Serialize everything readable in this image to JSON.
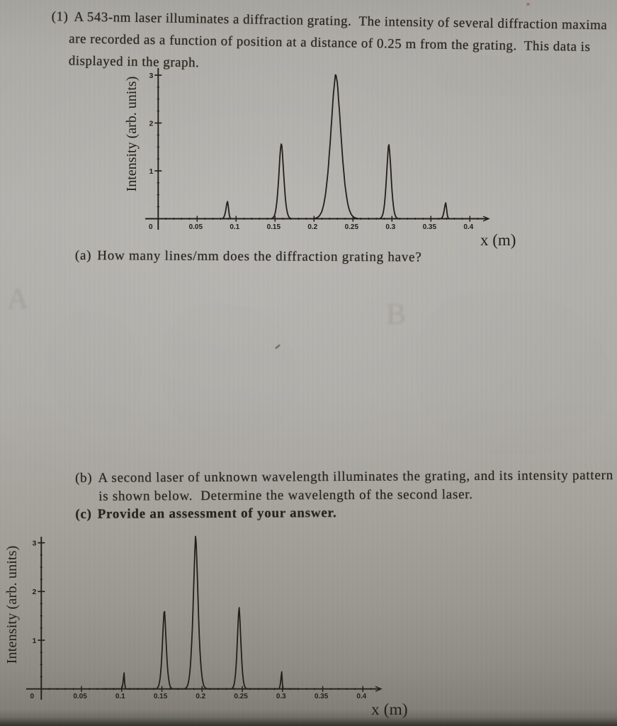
{
  "problem": {
    "number_label": "(1)",
    "intro_line1": "A 543-nm laser illuminates a diffraction grating.  The intensity of several diffraction maxima",
    "intro_line2": "are recorded as a function of position at a distance of 0.25 m from the grating.  This data is",
    "intro_line3": "displayed in the graph.",
    "part_a_label": "(a)",
    "part_a_text": "How many lines/mm does the diffraction grating have?",
    "part_b_label": "(b)",
    "part_b_line1": "A second laser of unknown wavelength illuminates the grating, and its intensity pattern",
    "part_b_line2": "is shown below.  Determine the wavelength of the second laser.",
    "part_c_label": "(c)",
    "part_c_text": "Provide an assessment of your answer."
  },
  "ghost_marks": {
    "letter_a": "A",
    "letter_b": "B"
  },
  "chart_data": [
    {
      "type": "line",
      "title": "",
      "xlabel": "x (m)",
      "ylabel": "Intensity (arb. units)",
      "xlim": [
        0,
        0.42
      ],
      "ylim": [
        0,
        3.2
      ],
      "xticks": [
        0,
        0.05,
        0.1,
        0.15,
        0.2,
        0.25,
        0.3,
        0.35,
        0.4
      ],
      "xtick_labels": [
        "0",
        "0.05",
        "0.1",
        "0.15",
        "0.2",
        "0.25",
        "0.3",
        "0.35",
        "0.4"
      ],
      "yticks": [
        1,
        2,
        3
      ],
      "x_minor_step": 0.01,
      "y_minor_step": 0.25,
      "grid": false,
      "peaks": [
        {
          "x": 0.089,
          "height": 0.36,
          "width": 0.0026,
          "skew": 0.3
        },
        {
          "x": 0.158,
          "height": 1.58,
          "width": 0.0045,
          "skew": 0
        },
        {
          "x": 0.228,
          "height": 3.01,
          "width": 0.0095,
          "skew": 0
        },
        {
          "x": 0.296,
          "height": 1.55,
          "width": 0.0042,
          "skew": 0
        },
        {
          "x": 0.369,
          "height": 0.33,
          "width": 0.0024,
          "skew": 0.3
        }
      ]
    },
    {
      "type": "line",
      "title": "",
      "xlabel": "x (m)",
      "ylabel": "Intensity (arb. units)",
      "xlim": [
        0,
        0.42
      ],
      "ylim": [
        0,
        3.2
      ],
      "xticks": [
        0,
        0.05,
        0.1,
        0.15,
        0.2,
        0.25,
        0.3,
        0.35,
        0.4
      ],
      "xtick_labels": [
        "0",
        "0.05",
        "0.1",
        "0.15",
        "0.2",
        "0.25",
        "0.3",
        "0.35",
        "0.4"
      ],
      "yticks": [
        1,
        2,
        3
      ],
      "x_minor_step": 0.01,
      "y_minor_step": 0.25,
      "grid": false,
      "peaks": [
        {
          "x": 0.103,
          "height": 0.33,
          "width": 0.0013,
          "skew": 0.4
        },
        {
          "x": 0.153,
          "height": 1.63,
          "width": 0.0034,
          "skew": 0
        },
        {
          "x": 0.192,
          "height": 3.13,
          "width": 0.0044,
          "skew": 0
        },
        {
          "x": 0.246,
          "height": 1.68,
          "width": 0.0032,
          "skew": 0
        },
        {
          "x": 0.299,
          "height": 0.35,
          "width": 0.0013,
          "skew": 0.4
        }
      ]
    }
  ]
}
